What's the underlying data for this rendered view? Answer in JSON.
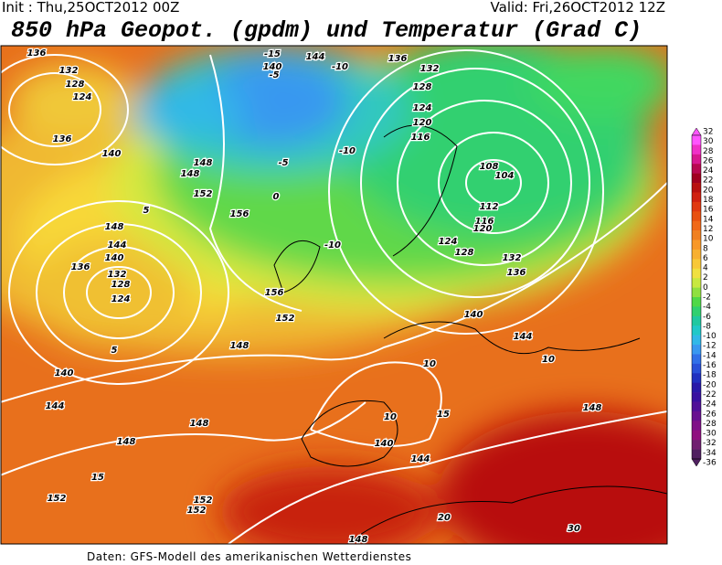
{
  "header": {
    "init": "Init : Thu,25OCT2012 00Z",
    "valid": "Valid: Fri,26OCT2012 12Z",
    "title": "850 hPa Geopot. (gpdm) und Temperatur (Grad C)"
  },
  "map": {
    "labels": [
      "136",
      "132",
      "128",
      "124",
      "136",
      "140",
      "148",
      "152",
      "156",
      "148",
      "144",
      "140",
      "136",
      "132",
      "128",
      "124",
      "140",
      "144",
      "148",
      "152",
      "148",
      "156",
      "152",
      "144",
      "140",
      "136",
      "132",
      "128",
      "124",
      "120",
      "116",
      "108",
      "104",
      "112",
      "116",
      "120",
      "124",
      "128",
      "132",
      "136",
      "140",
      "144",
      "148",
      "148",
      "144",
      "140",
      "148",
      "152",
      "152",
      "148",
      "-15",
      "-10",
      "-5",
      "0",
      "5",
      "10",
      "15",
      "20",
      "30",
      "-10",
      "-10",
      "-5",
      "5",
      "10",
      "15",
      "10"
    ]
  },
  "colorbar": {
    "labels": [
      32,
      30,
      28,
      26,
      24,
      22,
      20,
      18,
      16,
      14,
      12,
      10,
      8,
      6,
      4,
      2,
      0,
      -2,
      -4,
      -6,
      -8,
      -10,
      -12,
      -14,
      -16,
      -18,
      -20,
      -22,
      -24,
      -26,
      -28,
      -30,
      -32,
      -34,
      -36
    ],
    "colors": [
      "#ff55ff",
      "#f030c8",
      "#d81890",
      "#b80850",
      "#a00020",
      "#b81010",
      "#d02010",
      "#e03810",
      "#e85010",
      "#f06818",
      "#f08020",
      "#f89828",
      "#f8b030",
      "#f8c838",
      "#f0e040",
      "#c8e840",
      "#90e040",
      "#50d848",
      "#30d070",
      "#20c8a0",
      "#20c8c8",
      "#30b8e8",
      "#3898f0",
      "#3070e8",
      "#2850d8",
      "#2030c0",
      "#2818a8",
      "#3810a0",
      "#501098",
      "#681090",
      "#801088",
      "#901080",
      "#702070",
      "#502060"
    ]
  },
  "footer": "Daten: GFS-Modell des amerikanischen Wetterdienstes"
}
